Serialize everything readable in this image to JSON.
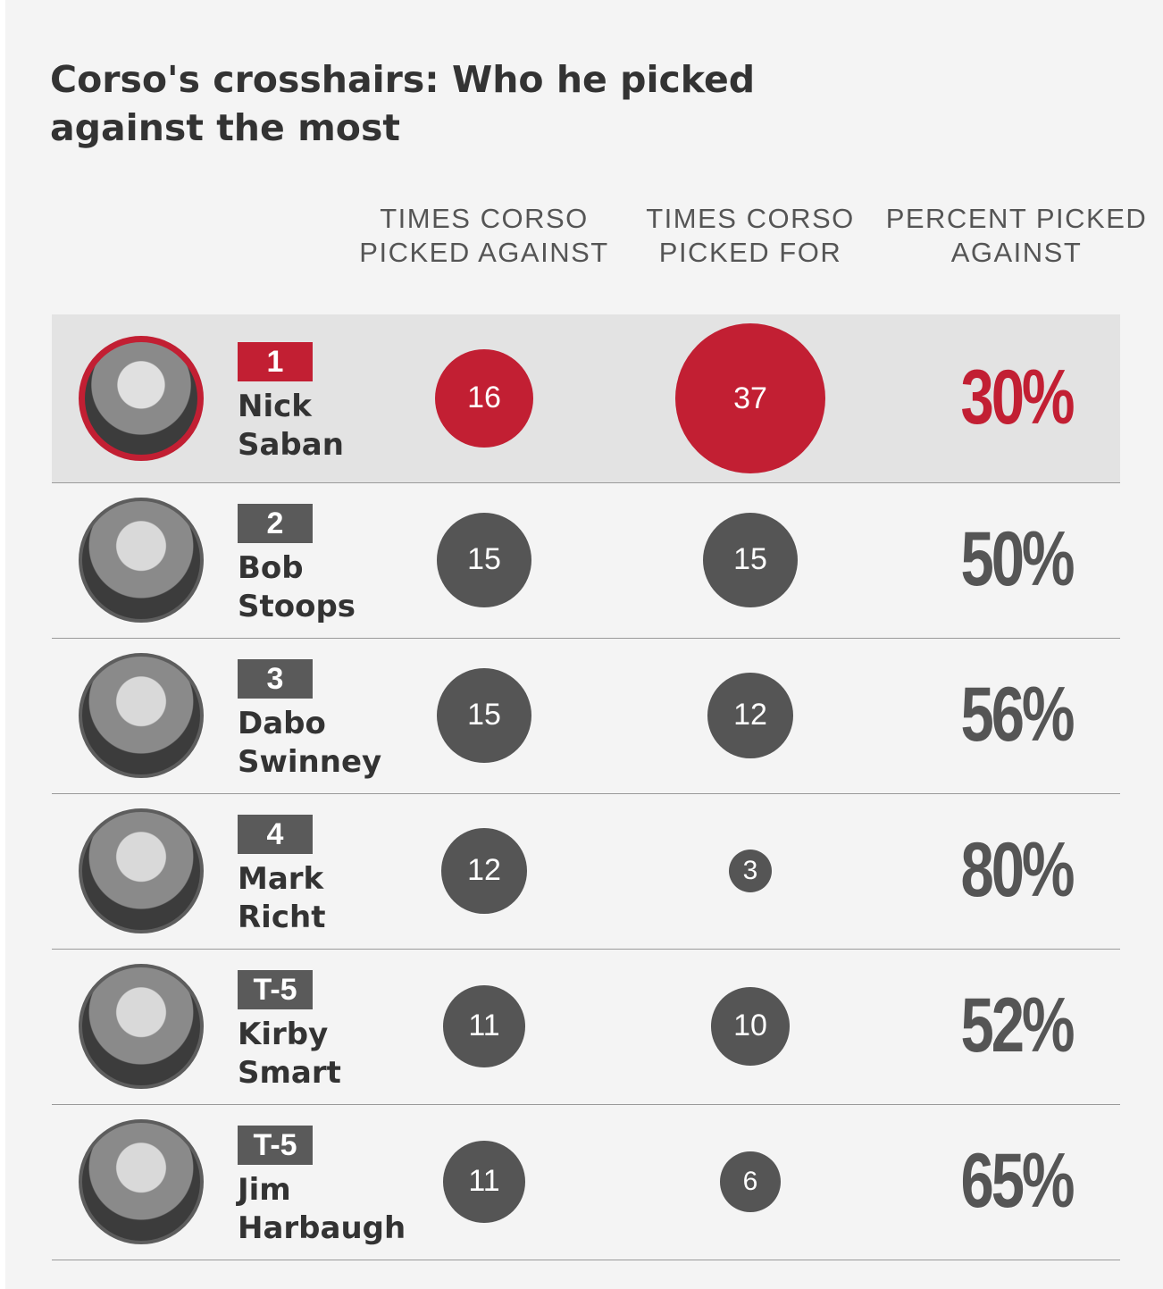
{
  "colors": {
    "highlight": "#c21f33",
    "neutral": "#555555",
    "background": "#f4f4f4"
  },
  "chart_data": {
    "type": "table",
    "title": "Corso's crosshairs: Who he picked against the most",
    "columns": [
      "TIMES CORSO PICKED AGAINST",
      "TIMES CORSO PICKED FOR",
      "PERCENT PICKED AGAINST"
    ],
    "rows": [
      {
        "rank": "1",
        "name_line1": "Nick",
        "name_line2": "Saban",
        "against": 16,
        "for": 37,
        "percent": "30%",
        "highlight": true
      },
      {
        "rank": "2",
        "name_line1": "Bob",
        "name_line2": "Stoops",
        "against": 15,
        "for": 15,
        "percent": "50%",
        "highlight": false
      },
      {
        "rank": "3",
        "name_line1": "Dabo",
        "name_line2": "Swinney",
        "against": 15,
        "for": 12,
        "percent": "56%",
        "highlight": false
      },
      {
        "rank": "4",
        "name_line1": "Mark",
        "name_line2": "Richt",
        "against": 12,
        "for": 3,
        "percent": "80%",
        "highlight": false
      },
      {
        "rank": "T-5",
        "name_line1": "Kirby",
        "name_line2": "Smart",
        "against": 11,
        "for": 10,
        "percent": "52%",
        "highlight": false
      },
      {
        "rank": "T-5",
        "name_line1": "Jim",
        "name_line2": "Harbaugh",
        "against": 11,
        "for": 6,
        "percent": "65%",
        "highlight": false
      }
    ]
  }
}
